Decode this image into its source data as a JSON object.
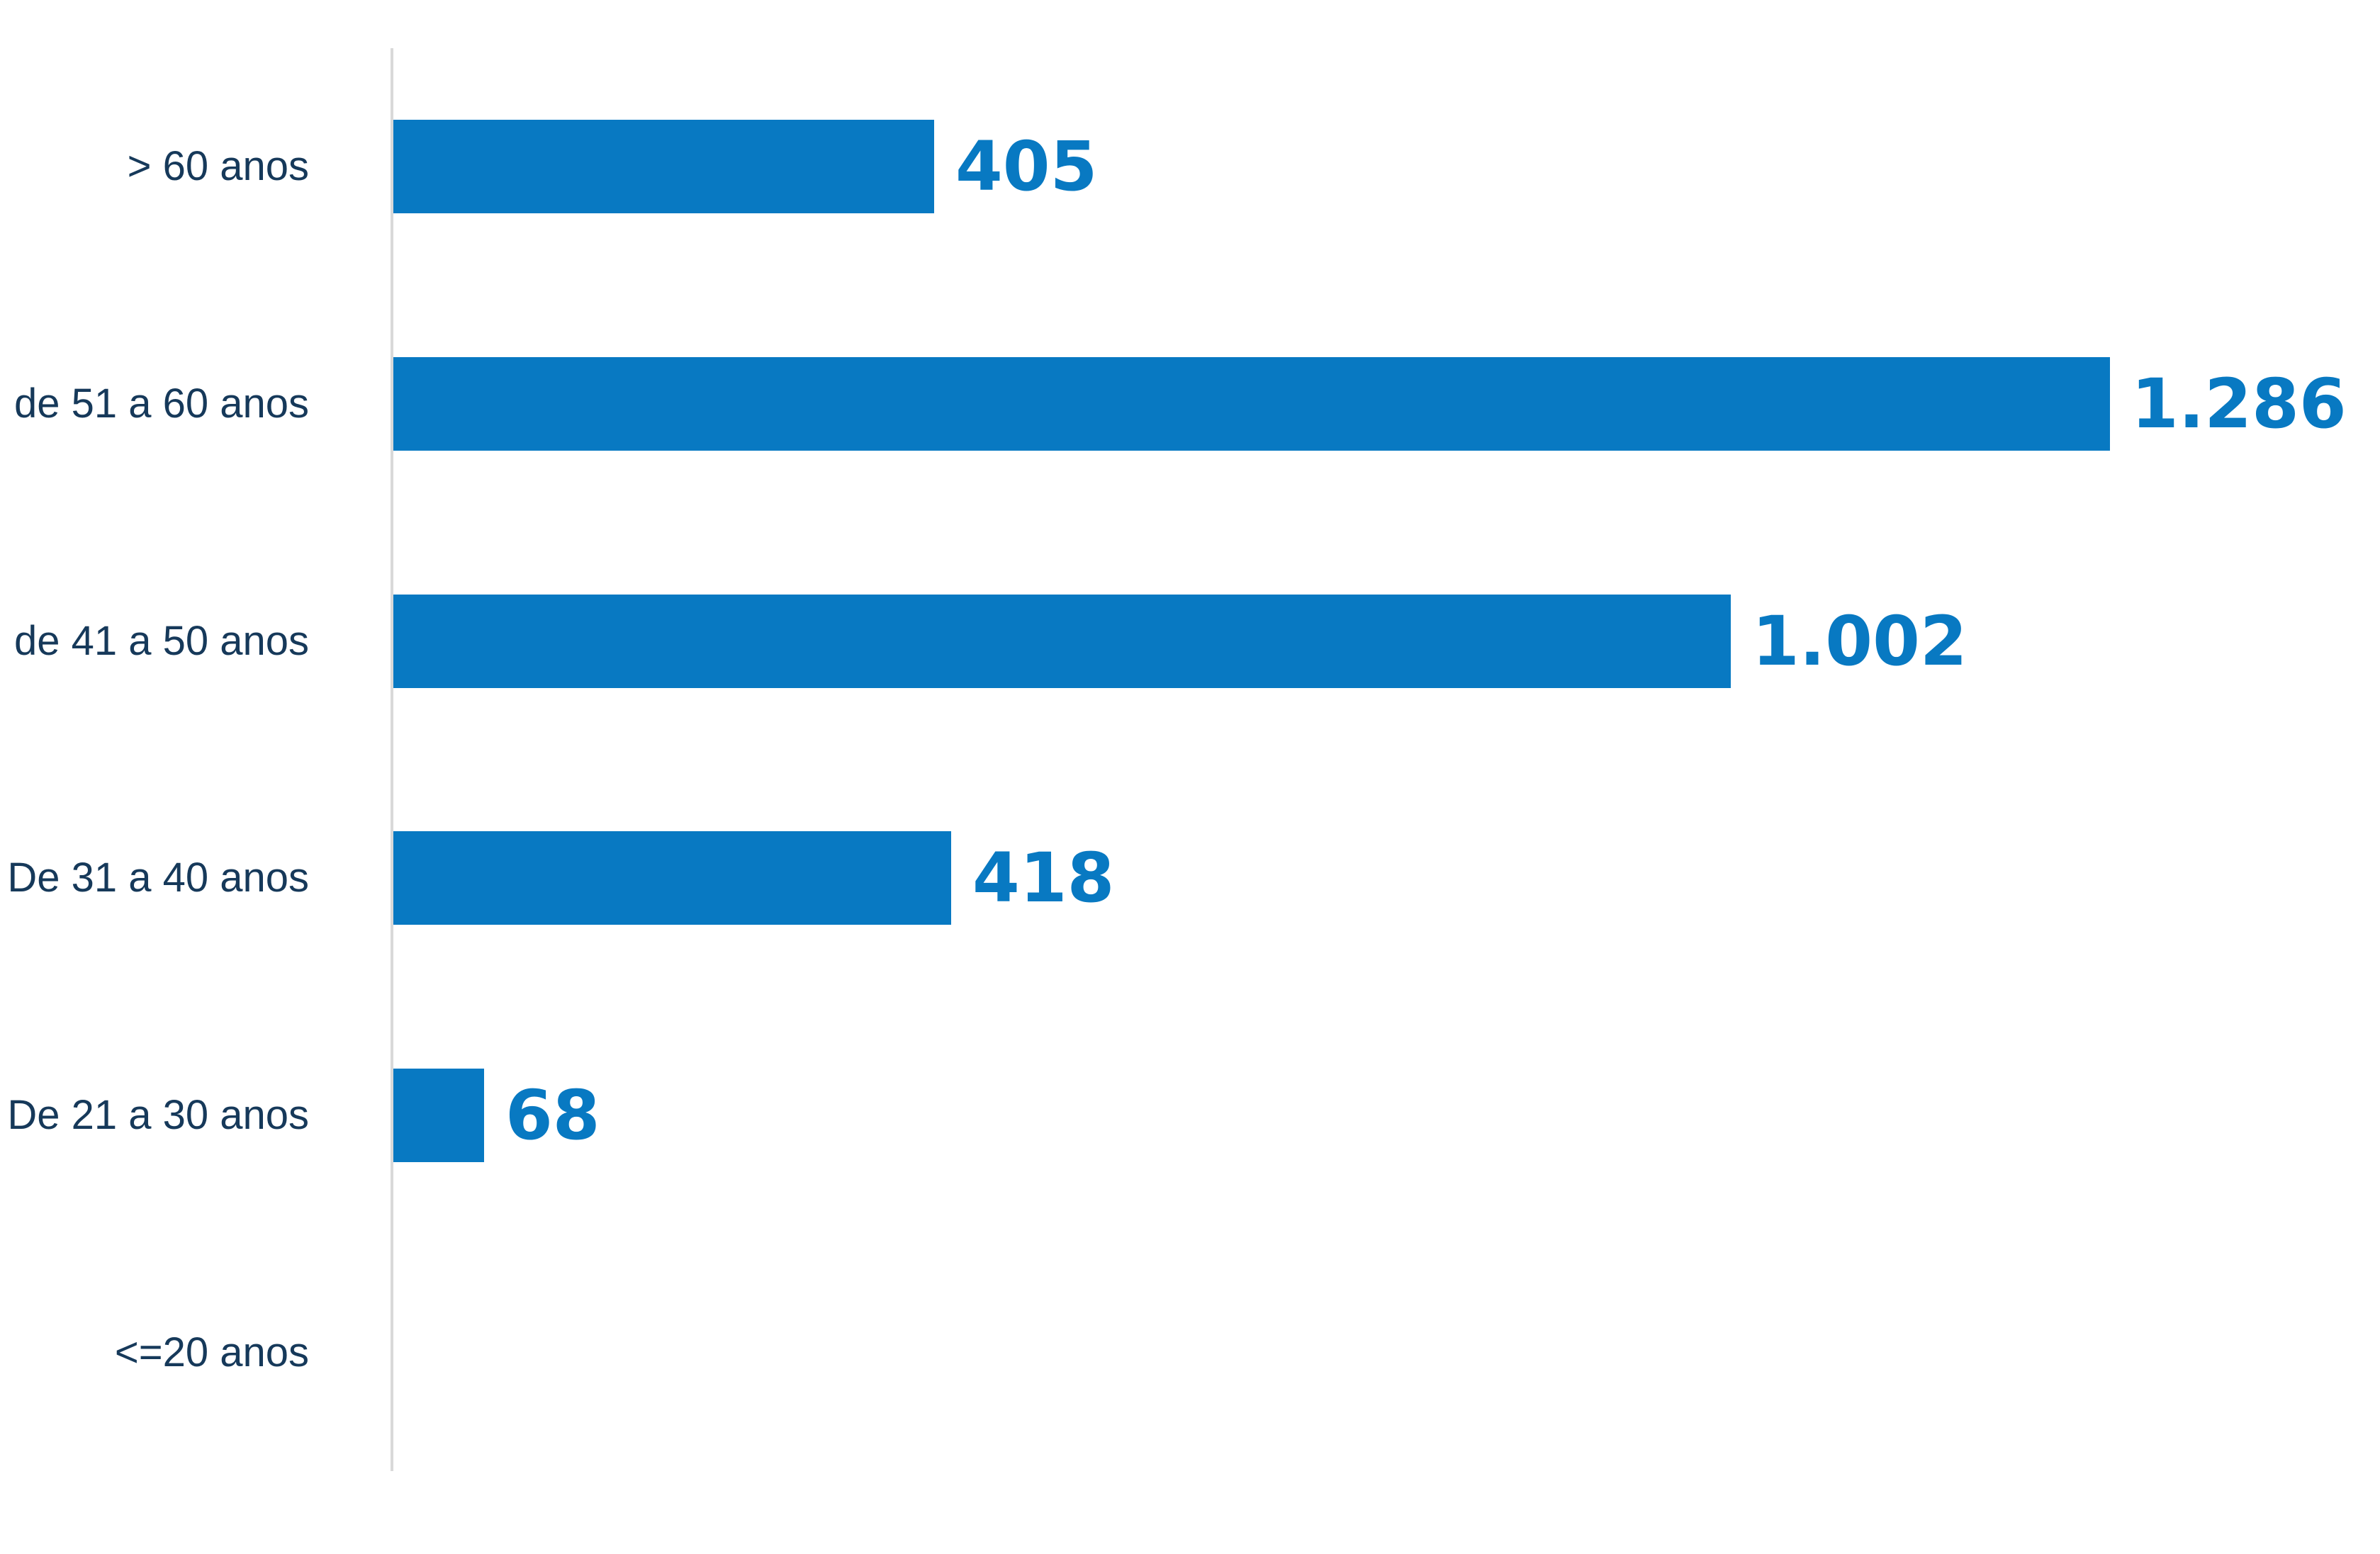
{
  "chart_data": {
    "type": "bar",
    "orientation": "horizontal",
    "title": "",
    "categories": [
      "> 60 anos",
      "de 51 a 60 anos",
      "de 41 a 50 anos",
      "De 31 a 40 anos",
      "De 21 a 30 anos",
      "<=20 anos"
    ],
    "values": [
      405,
      1286,
      1002,
      418,
      68,
      0
    ],
    "value_labels": [
      "405",
      "1.286",
      "1.002",
      "418",
      "68",
      ""
    ],
    "xlabel": "",
    "ylabel": "",
    "xlim": [
      0,
      1286
    ],
    "grid": false,
    "legend": false,
    "colors": {
      "bar": "#0879C2",
      "value_label": "#0879C2",
      "category_label": "#16395A",
      "axis_line": "#D9D9D9",
      "background": "#FFFFFF"
    }
  }
}
